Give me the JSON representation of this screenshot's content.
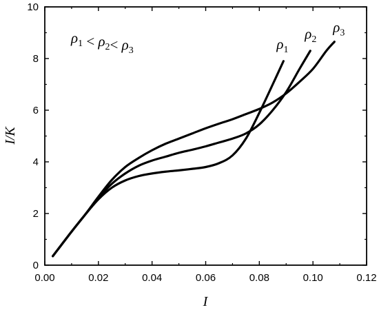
{
  "chart_data": {
    "type": "line",
    "xlabel": "I",
    "ylabel": "I/K",
    "xlim": [
      0.0,
      0.12
    ],
    "ylim": [
      0,
      10
    ],
    "x_ticks": [
      0.0,
      0.02,
      0.04,
      0.06,
      0.08,
      0.1,
      0.12
    ],
    "x_tick_labels": [
      "0.00",
      "0.02",
      "0.04",
      "0.06",
      "0.08",
      "0.10",
      "0.12"
    ],
    "y_ticks": [
      0,
      2,
      4,
      6,
      8,
      10
    ],
    "y_tick_labels": [
      "0",
      "2",
      "4",
      "6",
      "8",
      "10"
    ],
    "grid": false,
    "legend": "none",
    "annotation": {
      "text": "ρ1 < ρ2< ρ3",
      "parts": [
        {
          "base": "ρ",
          "sub": "1"
        },
        {
          "sep": " < "
        },
        {
          "base": "ρ",
          "sub": "2"
        },
        {
          "sep": "< "
        },
        {
          "base": "ρ",
          "sub": "3"
        }
      ]
    },
    "series": [
      {
        "name": "ρ1",
        "label_base": "ρ",
        "label_sub": "1",
        "color": "#000000",
        "x": [
          0.003,
          0.01,
          0.015,
          0.02,
          0.025,
          0.03,
          0.035,
          0.04,
          0.045,
          0.05,
          0.055,
          0.06,
          0.065,
          0.07,
          0.075,
          0.08,
          0.085,
          0.089
        ],
        "y": [
          0.35,
          1.3,
          1.95,
          2.55,
          3.0,
          3.28,
          3.45,
          3.55,
          3.62,
          3.67,
          3.73,
          3.8,
          3.95,
          4.25,
          4.9,
          5.9,
          7.0,
          7.9
        ]
      },
      {
        "name": "ρ2",
        "label_base": "ρ",
        "label_sub": "2",
        "color": "#000000",
        "x": [
          0.003,
          0.01,
          0.015,
          0.02,
          0.025,
          0.03,
          0.035,
          0.04,
          0.045,
          0.05,
          0.055,
          0.06,
          0.065,
          0.07,
          0.075,
          0.08,
          0.085,
          0.09,
          0.095,
          0.099
        ],
        "y": [
          0.35,
          1.3,
          1.95,
          2.6,
          3.15,
          3.55,
          3.85,
          4.05,
          4.2,
          4.35,
          4.47,
          4.6,
          4.75,
          4.9,
          5.1,
          5.45,
          6.0,
          6.7,
          7.6,
          8.3
        ]
      },
      {
        "name": "ρ3",
        "label_base": "ρ",
        "label_sub": "3",
        "color": "#000000",
        "x": [
          0.003,
          0.01,
          0.015,
          0.02,
          0.025,
          0.03,
          0.035,
          0.04,
          0.045,
          0.05,
          0.055,
          0.06,
          0.065,
          0.07,
          0.075,
          0.08,
          0.085,
          0.09,
          0.095,
          0.1,
          0.105,
          0.108
        ],
        "y": [
          0.35,
          1.3,
          1.95,
          2.65,
          3.3,
          3.8,
          4.15,
          4.45,
          4.7,
          4.9,
          5.1,
          5.3,
          5.48,
          5.65,
          5.85,
          6.05,
          6.3,
          6.65,
          7.1,
          7.6,
          8.3,
          8.65
        ]
      }
    ]
  }
}
